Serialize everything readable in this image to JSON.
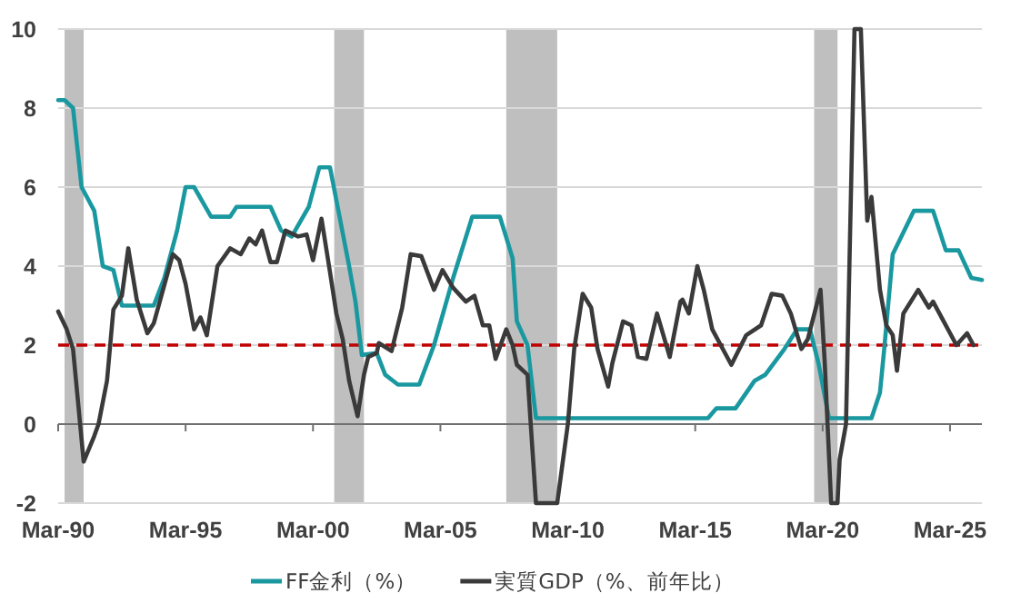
{
  "chart_data": {
    "type": "line",
    "xlim": [
      "1990-03",
      "2026-06"
    ],
    "ylim": [
      -2,
      10
    ],
    "xticks": [
      {
        "value": "1990-03",
        "label": "Mar-90"
      },
      {
        "value": "1995-03",
        "label": "Mar-95"
      },
      {
        "value": "2000-03",
        "label": "Mar-00"
      },
      {
        "value": "2005-03",
        "label": "Mar-05"
      },
      {
        "value": "2010-03",
        "label": "Mar-10"
      },
      {
        "value": "2015-03",
        "label": "Mar-15"
      },
      {
        "value": "2020-03",
        "label": "Mar-20"
      },
      {
        "value": "2025-03",
        "label": "Mar-25"
      }
    ],
    "yticks": [
      -2,
      0,
      2,
      4,
      6,
      8,
      10
    ],
    "grid": "y",
    "legend": "bottom",
    "marker": "none",
    "line_style": "solid",
    "bands": [
      {
        "axis": "x",
        "from": "1990-06",
        "to": "1991-03",
        "color": "#bfbfbf"
      },
      {
        "axis": "x",
        "from": "2001-01",
        "to": "2002-03",
        "color": "#bfbfbf"
      },
      {
        "axis": "x",
        "from": "2007-10",
        "to": "2009-10",
        "color": "#bfbfbf"
      },
      {
        "axis": "x",
        "from": "2019-11",
        "to": "2020-10",
        "color": "#bfbfbf"
      }
    ],
    "ref_lines": [
      {
        "axis": "y",
        "value": 2,
        "color": "#c00000",
        "line_style": "dashed"
      }
    ],
    "series": [
      {
        "name": "FF金利（%）",
        "color": "#1a98a0",
        "x": [
          "1990-03",
          "1990-06",
          "1990-10",
          "1991-02",
          "1991-08",
          "1991-12",
          "1992-05",
          "1992-09",
          "1993-12",
          "1994-05",
          "1994-11",
          "1995-03",
          "1995-07",
          "1996-03",
          "1996-12",
          "1997-03",
          "1998-07",
          "1998-12",
          "1999-05",
          "2000-01",
          "2000-06",
          "2000-11",
          "2001-08",
          "2001-11",
          "2002-02",
          "2002-09",
          "2003-01",
          "2003-07",
          "2004-05",
          "2004-12",
          "2005-09",
          "2006-06",
          "2007-07",
          "2008-01",
          "2008-03",
          "2008-08",
          "2008-12",
          "2015-09",
          "2016-01",
          "2016-10",
          "2017-07",
          "2017-12",
          "2018-09",
          "2019-03",
          "2019-09",
          "2020-01",
          "2020-06",
          "2022-02",
          "2022-06",
          "2022-08",
          "2022-12",
          "2023-05",
          "2023-10",
          "2024-07",
          "2025-01",
          "2025-07",
          "2026-01",
          "2026-06"
        ],
        "values": [
          8.2,
          8.2,
          8.0,
          6.0,
          5.4,
          4.0,
          3.9,
          3.0,
          3.0,
          3.7,
          4.9,
          6.0,
          6.0,
          5.25,
          5.25,
          5.5,
          5.5,
          4.9,
          4.75,
          5.5,
          6.5,
          6.5,
          4.0,
          3.1,
          1.75,
          1.8,
          1.25,
          1.0,
          1.0,
          2.0,
          3.7,
          5.25,
          5.25,
          4.2,
          2.6,
          2.0,
          0.15,
          0.15,
          0.4,
          0.4,
          1.1,
          1.25,
          1.9,
          2.4,
          2.4,
          1.55,
          0.15,
          0.15,
          0.8,
          1.9,
          4.3,
          4.85,
          5.4,
          5.4,
          4.4,
          4.4,
          3.7,
          3.65
        ]
      },
      {
        "name": "実質GDP（%、前年比）",
        "color": "#3a3a3a",
        "x": [
          "1990-03",
          "1990-07",
          "1990-10",
          "1991-03",
          "1991-08",
          "1991-10",
          "1992-02",
          "1992-05",
          "1992-09",
          "1992-12",
          "1993-04",
          "1993-09",
          "1993-12",
          "1994-09",
          "1994-12",
          "1995-03",
          "1995-07",
          "1995-10",
          "1996-01",
          "1996-06",
          "1996-12",
          "1997-05",
          "1997-09",
          "1997-12",
          "1998-03",
          "1998-07",
          "1998-10",
          "1999-02",
          "1999-08",
          "1999-12",
          "2000-03",
          "2000-07",
          "2000-11",
          "2001-02",
          "2001-05",
          "2001-08",
          "2001-12",
          "2002-03",
          "2002-05",
          "2002-09",
          "2002-10",
          "2003-04",
          "2003-09",
          "2004-01",
          "2004-06",
          "2004-12",
          "2005-04",
          "2005-09",
          "2006-03",
          "2006-07",
          "2006-11",
          "2007-02",
          "2007-05",
          "2007-10",
          "2008-01",
          "2008-03",
          "2008-08",
          "2008-12",
          "2009-10",
          "2010-03",
          "2010-06",
          "2010-10",
          "2011-02",
          "2011-05",
          "2011-10",
          "2011-12",
          "2012-05",
          "2012-09",
          "2012-12",
          "2013-04",
          "2013-09",
          "2014-03",
          "2014-08",
          "2014-09",
          "2014-12",
          "2015-04",
          "2015-07",
          "2015-11",
          "2016-08",
          "2017-03",
          "2017-10",
          "2018-03",
          "2018-08",
          "2018-12",
          "2019-05",
          "2019-08",
          "2020-02",
          "2020-04",
          "2020-07",
          "2020-10",
          "2020-11",
          "2021-02",
          "2021-06",
          "2021-09",
          "2021-12",
          "2022-02",
          "2022-06",
          "2022-09",
          "2022-12",
          "2023-02",
          "2023-05",
          "2023-12",
          "2024-05",
          "2024-07",
          "2024-12",
          "2025-06",
          "2025-11",
          "2026-02"
        ],
        "values": [
          2.85,
          2.4,
          1.9,
          -0.95,
          -0.3,
          0.0,
          1.1,
          2.9,
          3.25,
          4.45,
          3.15,
          2.3,
          2.55,
          4.3,
          4.15,
          3.55,
          2.4,
          2.7,
          2.25,
          4.0,
          4.45,
          4.3,
          4.7,
          4.55,
          4.9,
          4.1,
          4.1,
          4.9,
          4.75,
          4.8,
          4.15,
          5.2,
          3.85,
          2.8,
          2.15,
          1.1,
          0.2,
          1.25,
          1.7,
          1.8,
          2.05,
          1.85,
          2.95,
          4.3,
          4.25,
          3.4,
          3.9,
          3.45,
          3.1,
          3.25,
          2.5,
          2.5,
          1.65,
          2.4,
          2.0,
          1.5,
          1.25,
          -2,
          -2,
          0.0,
          1.9,
          3.3,
          2.95,
          1.9,
          0.95,
          1.55,
          2.6,
          2.5,
          1.7,
          1.65,
          2.8,
          1.7,
          3.1,
          3.15,
          2.8,
          4.0,
          3.4,
          2.4,
          1.5,
          2.25,
          2.5,
          3.3,
          3.25,
          2.8,
          1.9,
          2.15,
          3.4,
          1.55,
          -2,
          -2,
          -0.9,
          0.0,
          10,
          10,
          5.15,
          5.75,
          3.4,
          2.5,
          2.25,
          1.35,
          2.8,
          3.4,
          2.95,
          3.1,
          2.6,
          2.0,
          2.3,
          2.0
        ]
      }
    ]
  }
}
